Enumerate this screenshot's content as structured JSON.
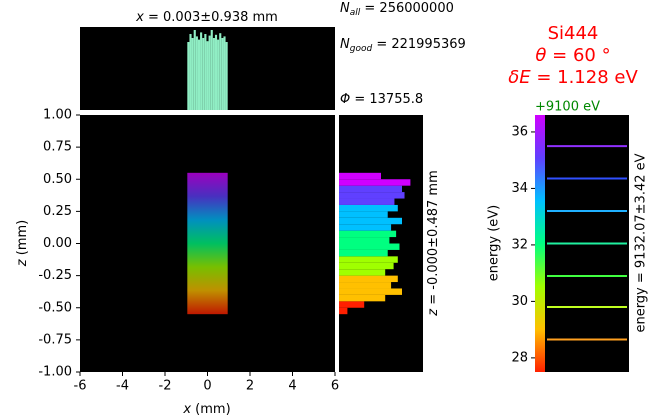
{
  "chart_data": [
    {
      "type": "beam-map",
      "xlabel": {
        "symbol": "x",
        "text": " (mm)"
      },
      "ylabel": {
        "symbol": "z",
        "text": " (mm)"
      },
      "xlim": [
        -6,
        6
      ],
      "ylim": [
        -1,
        1
      ],
      "xticks": [
        -6,
        -4,
        -2,
        0,
        2,
        4,
        6
      ],
      "yticks": [
        {
          "value": -1,
          "label": "-1.00"
        },
        {
          "value": -0.75,
          "label": "-0.75"
        },
        {
          "value": -0.5,
          "label": "-0.50"
        },
        {
          "value": -0.25,
          "label": "-0.25"
        },
        {
          "value": 0,
          "label": "0.00"
        },
        {
          "value": 0.25,
          "label": "0.25"
        },
        {
          "value": 0.5,
          "label": "0.50"
        },
        {
          "value": 0.75,
          "label": "0.75"
        },
        {
          "value": 1,
          "label": "1.00"
        }
      ],
      "beam_xlim": [
        -0.95,
        0.95
      ],
      "beam_zlim": [
        -0.55,
        0.55
      ],
      "colorbar_colors": [
        "#d000ff",
        "#6040ff",
        "#00c0ff",
        "#00ff80",
        "#a0ff00",
        "#ffc000",
        "#ff2000"
      ],
      "annotations": [
        {
          "symbol": "N",
          "sub": "all",
          "text": " = 256000000"
        },
        {
          "symbol": "N",
          "sub": "good",
          "text": " = 221995369"
        },
        {
          "symbol": "Φ",
          "sub": "",
          "text": " = 13755.8"
        }
      ]
    },
    {
      "type": "histogram",
      "title": {
        "symbol": "x",
        "text": " = 0.003±0.938 mm"
      },
      "color": "#90eec4",
      "bins": [
        -0.95,
        -0.85,
        -0.75,
        -0.65,
        -0.55,
        -0.45,
        -0.35,
        -0.25,
        -0.15,
        -0.05,
        0.05,
        0.15,
        0.25,
        0.35,
        0.45,
        0.55,
        0.65,
        0.75,
        0.85,
        0.95
      ],
      "values": [
        0.85,
        0.95,
        0.9,
        1,
        0.92,
        0.88,
        0.97,
        0.9,
        0.95,
        0.86,
        0.93,
        1,
        0.9,
        0.94,
        0.88,
        0.96,
        0.9,
        0.92,
        0.85
      ]
    },
    {
      "type": "side-histogram",
      "label": {
        "symbol": "z",
        "text": " = -0.000±0.487 mm"
      },
      "bins": [
        -0.55,
        -0.5,
        -0.45,
        -0.4,
        -0.35,
        -0.3,
        -0.25,
        -0.2,
        -0.15,
        -0.1,
        -0.05,
        0,
        0.05,
        0.1,
        0.15,
        0.2,
        0.25,
        0.3,
        0.35,
        0.4,
        0.45,
        0.5,
        0.55
      ],
      "values": [
        0.1,
        0.3,
        0.55,
        0.75,
        0.62,
        0.7,
        0.55,
        0.65,
        0.7,
        0.58,
        0.72,
        0.6,
        0.68,
        0.62,
        0.75,
        0.58,
        0.7,
        0.66,
        0.78,
        0.75,
        0.85,
        0.5
      ]
    },
    {
      "type": "energy-lines",
      "title": "Si444",
      "theta": {
        "symbol": "θ",
        "text": " = 60 °"
      },
      "delta": {
        "symbol": "δE",
        "text": " = 1.128 eV"
      },
      "offset_label": "+9100 eV",
      "ylabel": "energy (eV)",
      "right_label": "energy = 9132.07±3.42 eV",
      "ylim": [
        27.5,
        36.6
      ],
      "yticks": [
        28,
        30,
        32,
        34,
        36
      ],
      "values": [
        28.65,
        29.8,
        30.9,
        32.05,
        33.2,
        34.35,
        35.5
      ],
      "colors": [
        "#ffa020",
        "#c0ff20",
        "#40ff40",
        "#20f0a0",
        "#20b0ff",
        "#3050ff",
        "#9030ff"
      ]
    }
  ]
}
